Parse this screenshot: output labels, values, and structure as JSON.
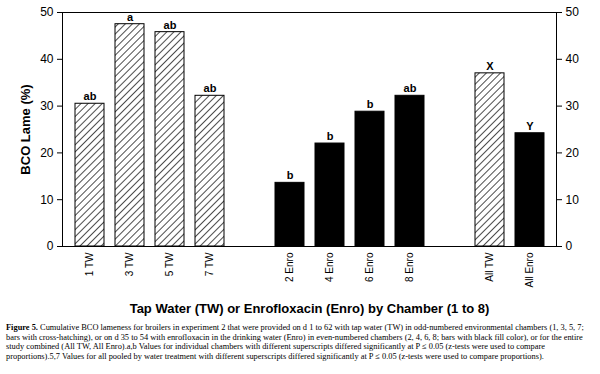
{
  "chart_data": {
    "type": "bar",
    "ylabel": "BCO Lame (%)",
    "xlabel": "Tap Water (TW) or Enrofloxacin (Enro) by Chamber (1 to 8)",
    "categories": [
      "1 TW",
      "3 TW",
      "5 TW",
      "7 TW",
      null,
      "2 Enro",
      "4 Enro",
      "6 Enro",
      "8 Enro",
      null,
      "All TW",
      "All Enro"
    ],
    "values": [
      30.5,
      47.5,
      45.8,
      32.2,
      null,
      13.6,
      22.0,
      28.8,
      32.2,
      null,
      37.0,
      24.2
    ],
    "annotations": [
      "ab",
      "a",
      "ab",
      "ab",
      null,
      "b",
      "b",
      "b",
      "ab",
      null,
      "X",
      "Y"
    ],
    "colors": [
      "white",
      "white",
      "white",
      "white",
      null,
      "black",
      "black",
      "black",
      "black",
      null,
      "white",
      "black"
    ],
    "ylim": [
      0,
      50
    ],
    "yticks": [
      0,
      10,
      20,
      30,
      40,
      50
    ],
    "grid": false,
    "caption_label": "Figure 5.",
    "caption": "Cumulative BCO lameness for broilers in experiment 2 that were provided on d 1 to 62 with tap water (TW) in odd-numbered environmental chambers (1, 3, 5, 7; bars with cross-hatching), or on d 35 to 54 with enrofloxacin in the drinking water (Enro) in even-numbered chambers (2, 4, 6, 8; bars with black fill color), or for the entire study combined (All TW, All Enro).a,b Values for individual chambers with different superscripts differed significantly at P ≤ 0.05 (z-tests were used to compare proportions).5,7 Values for all pooled by water treatment with different superscripts differed significantly at P ≤ 0.05 (z-tests were used to compare proportions)."
  }
}
